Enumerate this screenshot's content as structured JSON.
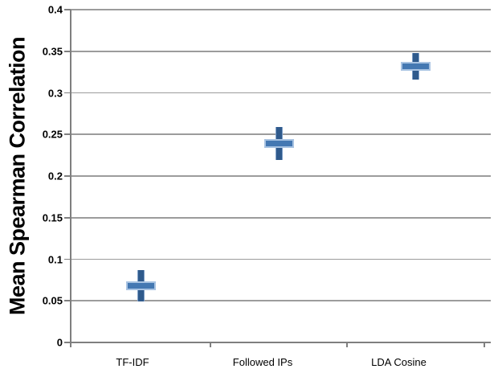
{
  "chart_data": {
    "type": "scatter",
    "title": "",
    "ylabel": "Mean Spearman Correlation",
    "xlabel": "",
    "ylim": [
      0,
      0.4
    ],
    "grid": true,
    "legend": "none",
    "categories": [
      "TF-IDF",
      "Followed IPs",
      "LDA Cosine"
    ],
    "series": [
      {
        "name": "Mean Spearman Correlation",
        "values": [
          0.068,
          0.239,
          0.332
        ],
        "error_bars": [
          0.019,
          0.02,
          0.016
        ],
        "marker": "plus-cross-with-vertical-error-bar"
      }
    ],
    "yticks": {
      "values": [
        0,
        0.05,
        0.1,
        0.15,
        0.2,
        0.25,
        0.3,
        0.35,
        0.4
      ],
      "labels": [
        "0",
        "0.05",
        "0.1",
        "0.15",
        "0.2",
        "0.25",
        "0.3",
        "0.35",
        "0.4"
      ]
    }
  },
  "colors": {
    "background": "#FFFFFF",
    "gridline": "#9C9C9C",
    "axis": "#7F7F7F",
    "error_bar_fill": "#2F5A8C",
    "error_bar_edge": "#7FA0C8",
    "marker_fill": "#4478B2",
    "marker_border": "#A8C3E2",
    "text": "#000000"
  }
}
